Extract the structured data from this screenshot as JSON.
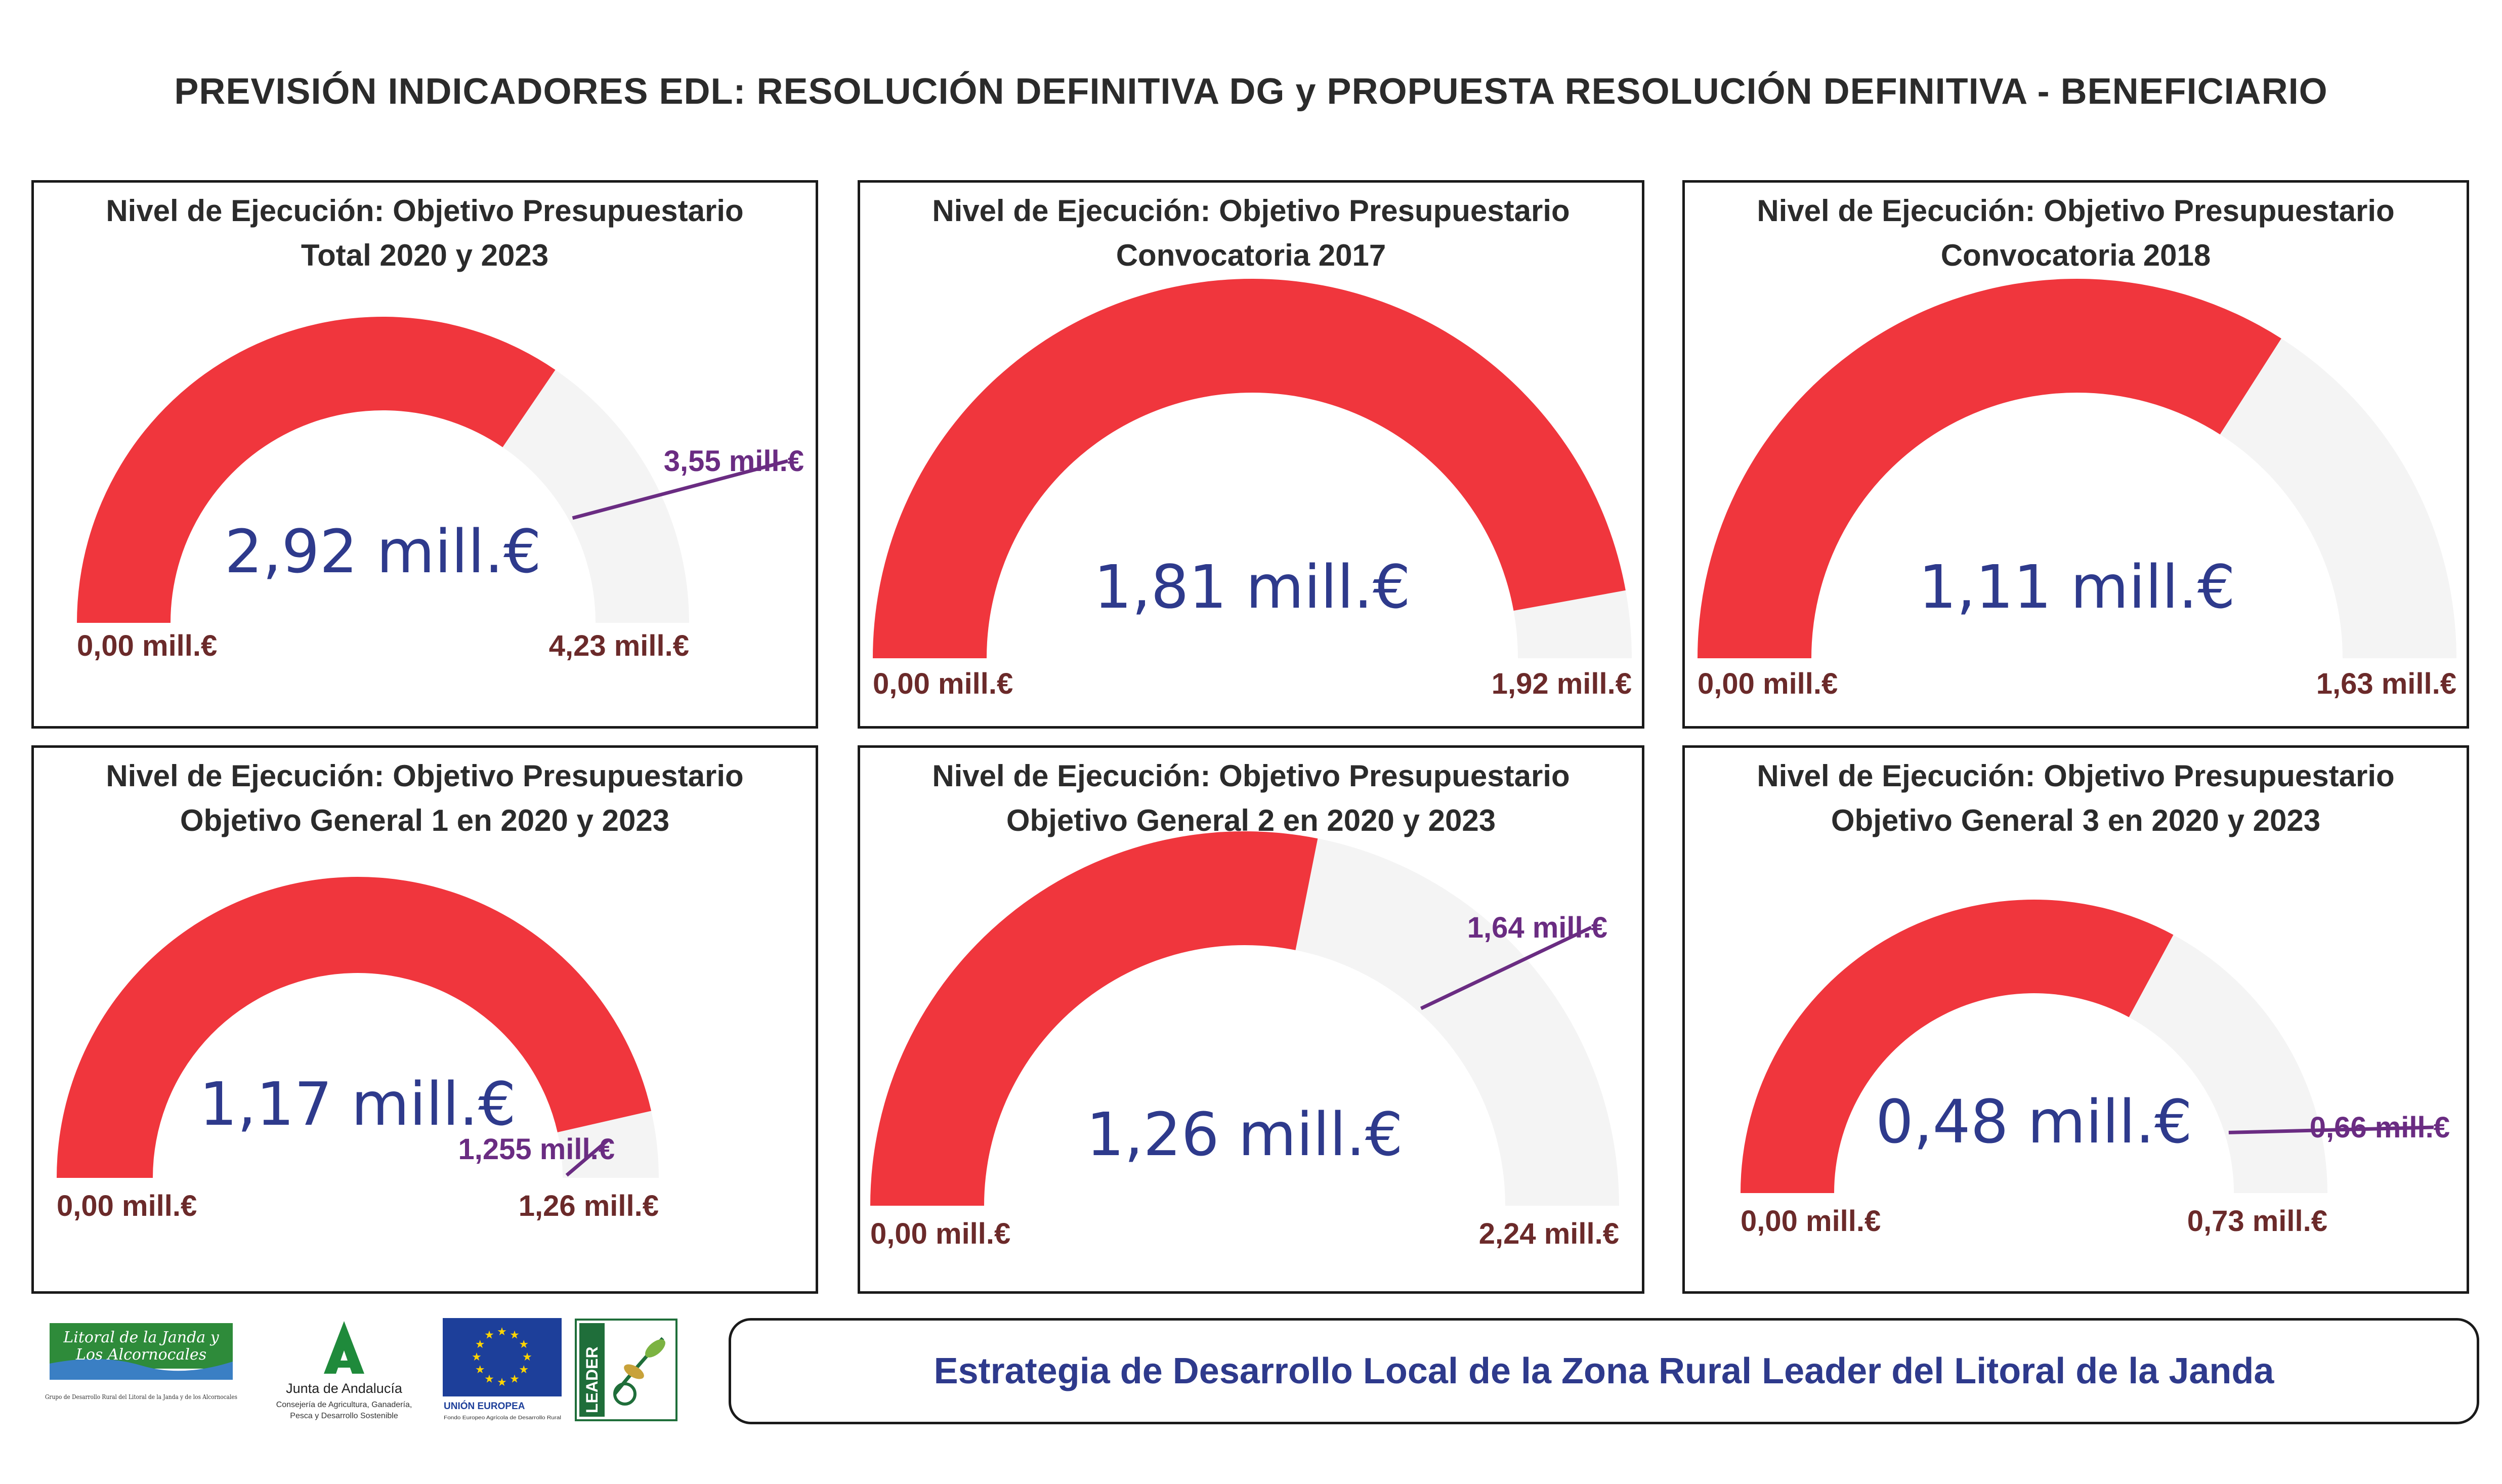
{
  "header": {
    "title": "PREVISIÓN INDICADORES EDL: RESOLUCIÓN DEFINITIVA DG y PROPUESTA RESOLUCIÓN DEFINITIVA - BENEFICIARIO"
  },
  "colors": {
    "fill": "#f0363d",
    "track": "#f4f4f4",
    "value_text": "#2e3a8c",
    "range_text": "#6b2a2a",
    "target": "#6a2c82"
  },
  "chart_data": [
    {
      "type": "gauge",
      "title": "Nivel de Ejecución: Objetivo Presupuestario\nTotal 2020 y 2023",
      "value": 2.92,
      "min": 0,
      "max": 4.23,
      "target": 3.55,
      "value_label": "2,92 mill.€",
      "min_label": "0,00 mill.€",
      "max_label": "4,23 mill.€",
      "target_label": "3,55 mill.€"
    },
    {
      "type": "gauge",
      "title": "Nivel de Ejecución: Objetivo Presupuestario\nConvocatoria 2017",
      "value": 1.81,
      "min": 0,
      "max": 1.92,
      "value_label": "1,81 mill.€",
      "min_label": "0,00 mill.€",
      "max_label": "1,92 mill.€"
    },
    {
      "type": "gauge",
      "title": "Nivel de Ejecución: Objetivo Presupuestario\nConvocatoria 2018",
      "value": 1.11,
      "min": 0,
      "max": 1.63,
      "value_label": "1,11 mill.€",
      "min_label": "0,00 mill.€",
      "max_label": "1,63 mill.€"
    },
    {
      "type": "gauge",
      "title": "Nivel de Ejecución: Objetivo Presupuestario\nObjetivo General 1 en 2020 y 2023",
      "value": 1.17,
      "min": 0,
      "max": 1.26,
      "target": 1.255,
      "value_label": "1,17 mill.€",
      "min_label": "0,00 mill.€",
      "max_label": "1,26 mill.€",
      "target_label": "1,255 mill.€"
    },
    {
      "type": "gauge",
      "title": "Nivel de Ejecución: Objetivo Presupuestario\nObjetivo General 2 en 2020 y 2023",
      "value": 1.26,
      "min": 0,
      "max": 2.24,
      "target": 1.64,
      "value_label": "1,26 mill.€",
      "min_label": "0,00 mill.€",
      "max_label": "2,24 mill.€",
      "target_label": "1,64 mill.€"
    },
    {
      "type": "gauge",
      "title": "Nivel de Ejecución: Objetivo Presupuestario\nObjetivo General 3 en 2020 y 2023",
      "value": 0.48,
      "min": 0,
      "max": 0.73,
      "target": 0.66,
      "value_label": "0,48 mill.€",
      "min_label": "0,00 mill.€",
      "max_label": "0,73 mill.€",
      "target_label": "0,66 mill.€"
    }
  ],
  "footer": {
    "text": "Estrategia de Desarrollo Local de la Zona Rural Leader del Litoral de la Janda",
    "logos": {
      "litoral_line1": "Litoral de la Janda y",
      "litoral_line2": "Los Alcornocales",
      "litoral_sub": "Grupo de Desarrollo Rural del Litoral de la Janda y de los Alcornocales",
      "junta_name": "Junta de Andalucía",
      "junta_sub1": "Consejería de Agricultura, Ganadería,",
      "junta_sub2": "Pesca y Desarrollo Sostenible",
      "ue_name": "UNIÓN EUROPEA",
      "ue_sub": "Fondo Europeo Agrícola de Desarrollo Rural",
      "leader_text": "LEADER"
    }
  }
}
